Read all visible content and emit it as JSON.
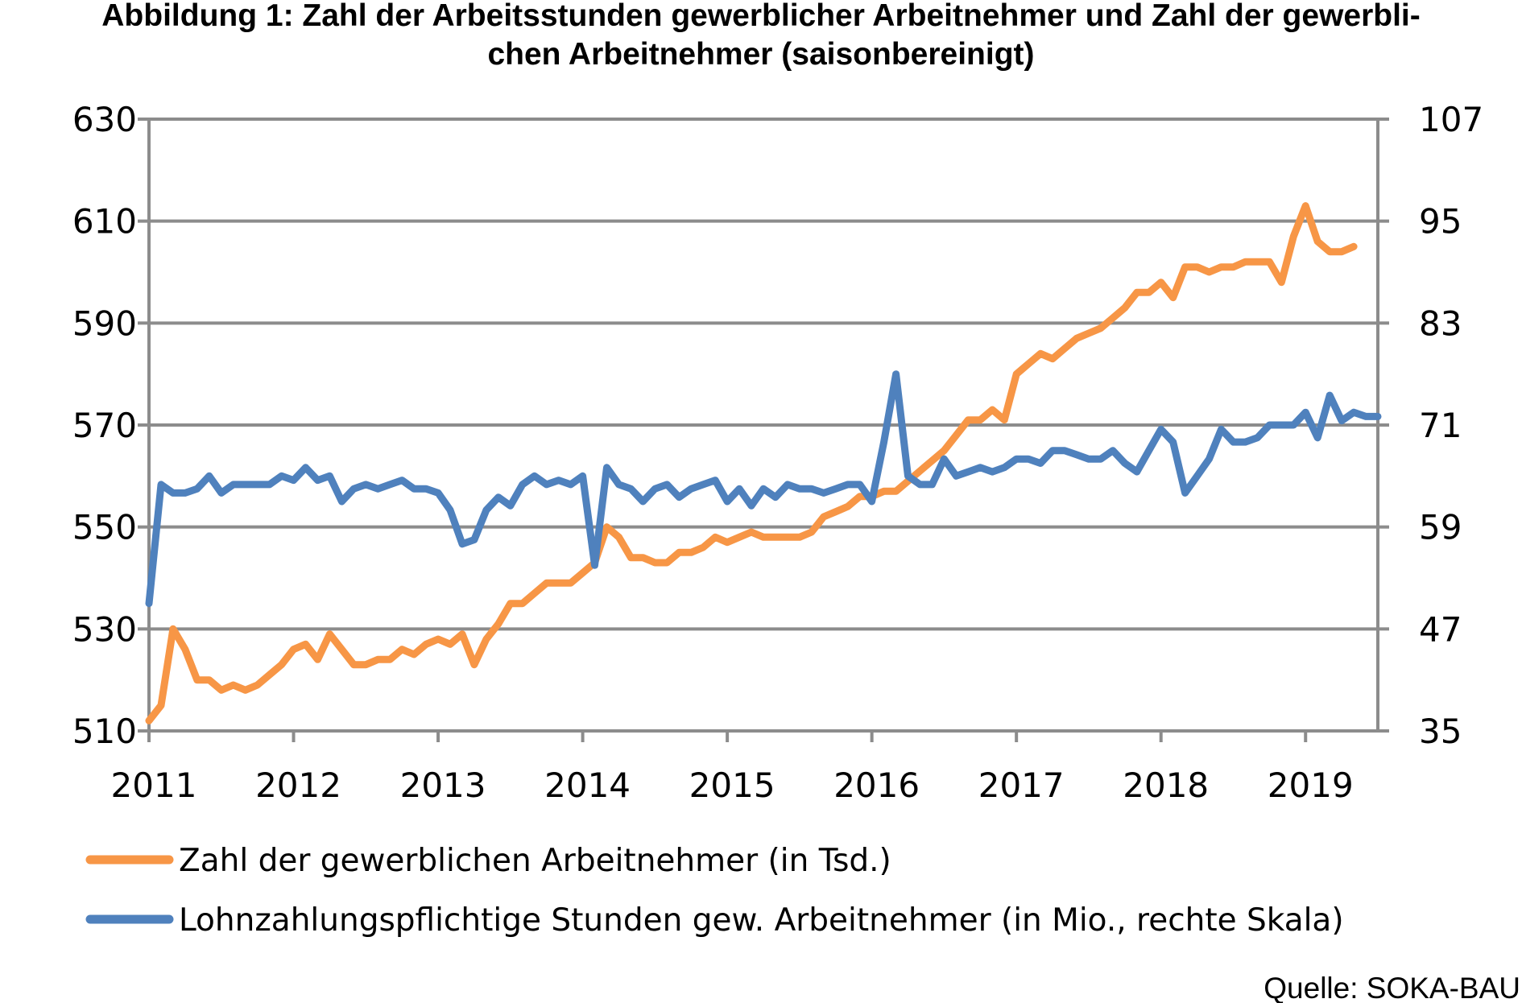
{
  "chart_data": {
    "type": "line",
    "title": "Abbildung 1: Zahl der Arbeitsstunden gewerblicher Arbeitnehmer und Zahl der gewerbli-",
    "title_line2": "chen Arbeitnehmer (saisonbereinigt)",
    "x_tick_labels": [
      "2011",
      "2012",
      "2013",
      "2014",
      "2015",
      "2016",
      "2017",
      "2018",
      "2019"
    ],
    "x_start_year": 2011,
    "xlim": [
      2011,
      2019.5
    ],
    "y_left": {
      "ticks": [
        "510",
        "530",
        "550",
        "570",
        "590",
        "610",
        "630"
      ],
      "lim": [
        510,
        630
      ]
    },
    "y_right": {
      "ticks": [
        "35",
        "47",
        "59",
        "71",
        "83",
        "95",
        "107"
      ],
      "lim": [
        35,
        107
      ]
    },
    "grid": true,
    "legend_position": "bottom",
    "series": [
      {
        "name": "Zahl der gewerblichen Arbeitnehmer (in Tsd.)",
        "axis": "left",
        "color": "#F79646",
        "values": [
          512,
          515,
          530,
          526,
          520,
          520,
          518,
          519,
          518,
          519,
          521,
          523,
          526,
          527,
          524,
          529,
          526,
          523,
          523,
          524,
          524,
          526,
          525,
          527,
          528,
          527,
          529,
          523,
          528,
          531,
          535,
          535,
          537,
          539,
          539,
          539,
          541,
          543,
          550,
          548,
          544,
          544,
          543,
          543,
          545,
          545,
          546,
          548,
          547,
          548,
          549,
          548,
          548,
          548,
          548,
          549,
          552,
          553,
          554,
          556,
          556,
          557,
          557,
          559,
          561,
          563,
          565,
          568,
          571,
          571,
          573,
          571,
          580,
          582,
          584,
          583,
          585,
          587,
          588,
          589,
          591,
          593,
          596,
          596,
          598,
          595,
          601,
          601,
          600,
          601,
          601,
          602,
          602,
          602,
          598,
          607,
          613,
          606,
          604,
          604,
          605
        ]
      },
      {
        "name": "Lohnzahlungspflichtige Stunden gew. Arbeitnehmer (in Mio., rechte Skala)",
        "axis": "right",
        "color": "#4F81BD",
        "values": [
          50,
          64,
          63,
          63,
          63.5,
          65,
          63,
          64,
          64,
          64,
          64,
          65,
          64.5,
          66,
          64.5,
          65,
          62,
          63.5,
          64,
          63.5,
          64,
          64.5,
          63.5,
          63.5,
          63,
          61,
          57,
          57.5,
          61,
          62.5,
          61.5,
          64,
          65,
          64,
          64.5,
          64,
          65,
          54.5,
          66,
          64,
          63.5,
          62,
          63.5,
          64,
          62.5,
          63.5,
          64,
          64.5,
          62,
          63.5,
          61.5,
          63.5,
          62.5,
          64,
          63.5,
          63.5,
          63,
          63.5,
          64,
          64,
          62,
          69,
          77,
          65,
          64,
          64,
          67,
          65,
          65.5,
          66,
          65.5,
          66,
          67,
          67,
          66.5,
          68,
          68,
          67.5,
          67,
          67,
          68,
          66.5,
          65.5,
          68,
          70.5,
          69,
          63,
          65,
          67,
          70.5,
          69,
          69,
          69.5,
          71,
          71,
          71,
          72.5,
          69.5,
          74.5,
          71.5,
          72.5,
          72,
          72
        ]
      }
    ],
    "source": "Quelle: SOKA-BAU"
  }
}
